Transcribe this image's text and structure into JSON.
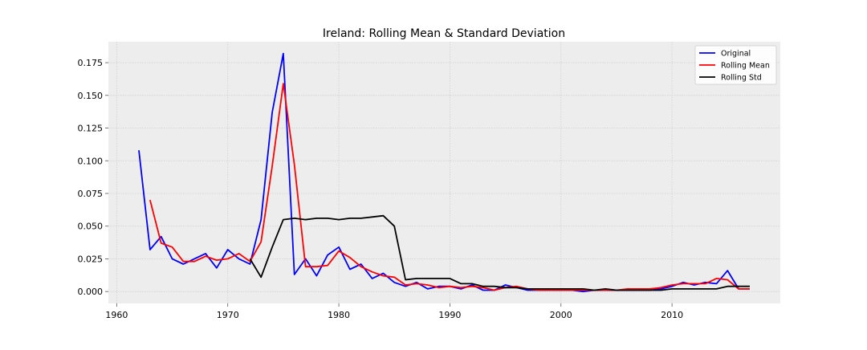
{
  "chart_data": {
    "type": "line",
    "title": "Ireland: Rolling Mean & Standard Deviation",
    "xlabel": "",
    "ylabel": "",
    "xlim": [
      1959.25,
      2019.75
    ],
    "ylim": [
      -0.0091,
      0.191
    ],
    "x_ticks": [
      1960,
      1970,
      1980,
      1990,
      2000,
      2010
    ],
    "y_ticks": [
      0.0,
      0.025,
      0.05,
      0.075,
      0.1,
      0.125,
      0.15,
      0.175
    ],
    "y_tick_labels": [
      "0.000",
      "0.025",
      "0.050",
      "0.075",
      "0.100",
      "0.125",
      "0.150",
      "0.175"
    ],
    "x_tick_labels": [
      "1960",
      "1970",
      "1980",
      "1990",
      "2000",
      "2010"
    ],
    "grid": true,
    "legend_position": "top-right",
    "series": [
      {
        "name": "Original",
        "color": "#0000ff",
        "x": [
          1962,
          1963,
          1964,
          1965,
          1966,
          1967,
          1968,
          1969,
          1970,
          1971,
          1972,
          1973,
          1974,
          1975,
          1976,
          1977,
          1978,
          1979,
          1980,
          1981,
          1982,
          1983,
          1984,
          1985,
          1986,
          1987,
          1988,
          1989,
          1990,
          1991,
          1992,
          1993,
          1994,
          1995,
          1996,
          1997,
          1998,
          1999,
          2000,
          2001,
          2002,
          2003,
          2004,
          2005,
          2006,
          2007,
          2008,
          2009,
          2010,
          2011,
          2012,
          2013,
          2014,
          2015,
          2016,
          2017
        ],
        "values": [
          0.108,
          0.032,
          0.042,
          0.025,
          0.021,
          0.025,
          0.029,
          0.018,
          0.032,
          0.025,
          0.021,
          0.055,
          0.137,
          0.182,
          0.013,
          0.025,
          0.012,
          0.028,
          0.034,
          0.017,
          0.021,
          0.01,
          0.014,
          0.007,
          0.004,
          0.007,
          0.002,
          0.004,
          0.004,
          0.002,
          0.005,
          0.001,
          0.001,
          0.005,
          0.003,
          0.001,
          0.001,
          0.001,
          0.001,
          0.001,
          0.0,
          0.001,
          0.001,
          0.001,
          0.001,
          0.001,
          0.001,
          0.002,
          0.004,
          0.007,
          0.005,
          0.007,
          0.006,
          0.016,
          0.002,
          0.002
        ]
      },
      {
        "name": "Rolling Mean",
        "color": "#ff0000",
        "x": [
          1963,
          1964,
          1965,
          1966,
          1967,
          1968,
          1969,
          1970,
          1971,
          1972,
          1973,
          1974,
          1975,
          1976,
          1977,
          1978,
          1979,
          1980,
          1981,
          1982,
          1983,
          1984,
          1985,
          1986,
          1987,
          1988,
          1989,
          1990,
          1991,
          1992,
          1993,
          1994,
          1995,
          1996,
          1997,
          1998,
          1999,
          2000,
          2001,
          2002,
          2003,
          2004,
          2005,
          2006,
          2007,
          2008,
          2009,
          2010,
          2011,
          2012,
          2013,
          2014,
          2015,
          2016,
          2017
        ],
        "values": [
          0.07,
          0.037,
          0.034,
          0.023,
          0.023,
          0.027,
          0.024,
          0.025,
          0.029,
          0.023,
          0.038,
          0.096,
          0.159,
          0.097,
          0.019,
          0.019,
          0.02,
          0.031,
          0.026,
          0.019,
          0.015,
          0.012,
          0.011,
          0.005,
          0.006,
          0.005,
          0.003,
          0.004,
          0.003,
          0.004,
          0.003,
          0.001,
          0.003,
          0.004,
          0.002,
          0.001,
          0.001,
          0.001,
          0.001,
          0.001,
          0.001,
          0.001,
          0.001,
          0.002,
          0.002,
          0.002,
          0.003,
          0.005,
          0.006,
          0.006,
          0.006,
          0.01,
          0.009,
          0.002,
          0.002
        ]
      },
      {
        "name": "Rolling Std",
        "color": "#000000",
        "x": [
          1972,
          1973,
          1974,
          1975,
          1976,
          1977,
          1978,
          1979,
          1980,
          1981,
          1982,
          1983,
          1984,
          1985,
          1986,
          1987,
          1988,
          1989,
          1990,
          1991,
          1992,
          1993,
          1994,
          1995,
          1996,
          1997,
          1998,
          1999,
          2000,
          2001,
          2002,
          2003,
          2004,
          2005,
          2006,
          2007,
          2008,
          2009,
          2010,
          2011,
          2012,
          2013,
          2014,
          2015,
          2016,
          2017
        ],
        "values": [
          0.025,
          0.011,
          0.034,
          0.055,
          0.056,
          0.055,
          0.056,
          0.056,
          0.055,
          0.056,
          0.056,
          0.057,
          0.058,
          0.05,
          0.009,
          0.01,
          0.01,
          0.01,
          0.01,
          0.006,
          0.006,
          0.004,
          0.004,
          0.003,
          0.003,
          0.002,
          0.002,
          0.002,
          0.002,
          0.002,
          0.002,
          0.001,
          0.002,
          0.001,
          0.001,
          0.001,
          0.001,
          0.001,
          0.002,
          0.002,
          0.002,
          0.002,
          0.002,
          0.004,
          0.004,
          0.004
        ]
      }
    ]
  }
}
